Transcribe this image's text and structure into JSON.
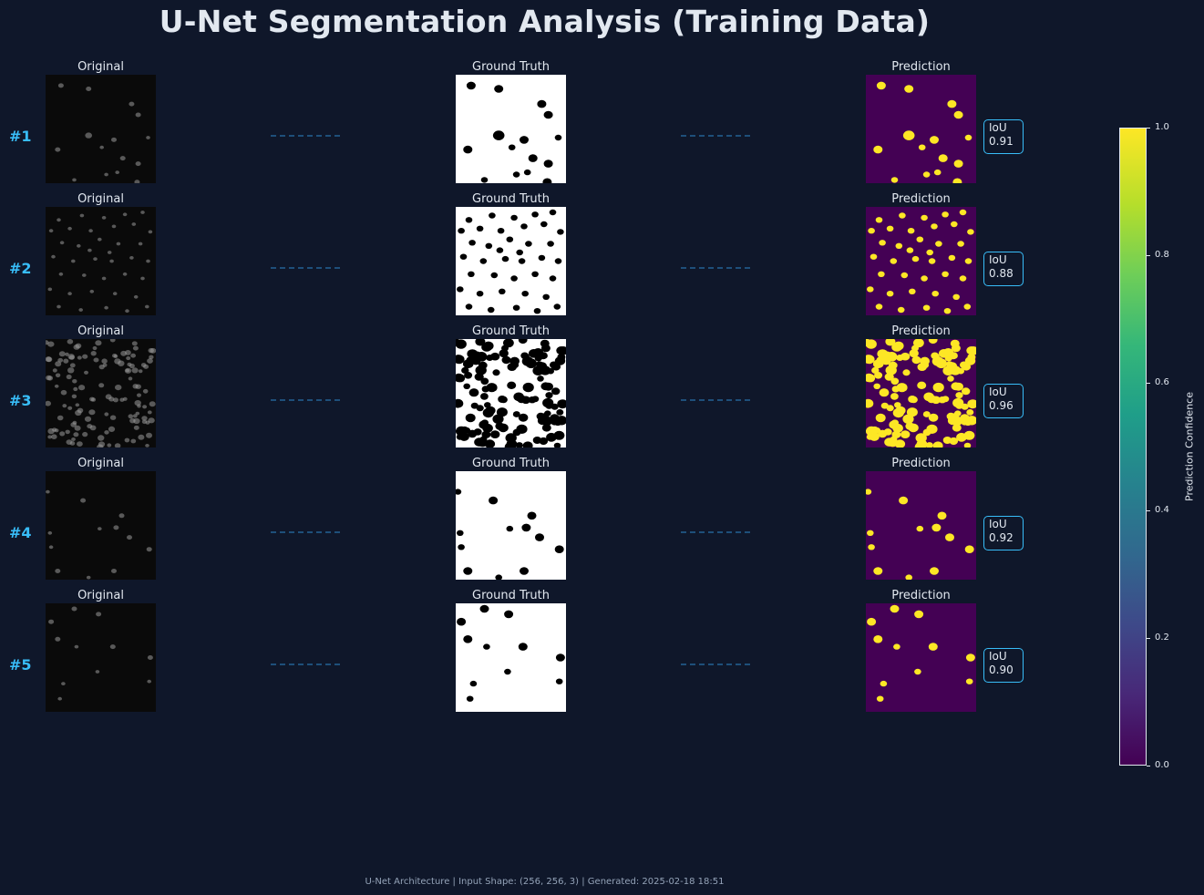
{
  "title": "U-Net Segmentation Analysis (Training Data)",
  "footer": "U-Net Architecture | Input Shape: (256, 256, 3) | Generated: 2025-02-18 18:51",
  "colors": {
    "background": "#0f172a",
    "text": "#e2e8f0",
    "accent": "#38bdf8",
    "connector": "#1e4f7a",
    "viridis_low": "#440154",
    "viridis_high": "#fde725"
  },
  "chart_data": {
    "type": "image_grid",
    "columns": [
      "Original",
      "Ground Truth",
      "Prediction"
    ],
    "rows": [
      {
        "label": "#1",
        "iou_label": "IoU",
        "iou": "0.91",
        "nuclei": [
          [
            0.14,
            0.1,
            4
          ],
          [
            0.39,
            0.13,
            4
          ],
          [
            0.78,
            0.27,
            4
          ],
          [
            0.84,
            0.37,
            4
          ],
          [
            0.39,
            0.56,
            5
          ],
          [
            0.62,
            0.6,
            4
          ],
          [
            0.11,
            0.69,
            4
          ],
          [
            0.51,
            0.67,
            3
          ],
          [
            0.7,
            0.77,
            4
          ],
          [
            0.84,
            0.82,
            4
          ],
          [
            0.83,
            0.99,
            4
          ],
          [
            0.55,
            0.92,
            3
          ],
          [
            0.26,
            0.97,
            3
          ],
          [
            0.65,
            0.9,
            3
          ],
          [
            0.93,
            0.58,
            3
          ]
        ]
      },
      {
        "label": "#2",
        "iou_label": "IoU",
        "iou": "0.88",
        "nuclei": [
          [
            0.12,
            0.12,
            3
          ],
          [
            0.33,
            0.08,
            3
          ],
          [
            0.53,
            0.1,
            3
          ],
          [
            0.72,
            0.07,
            3
          ],
          [
            0.88,
            0.05,
            3
          ],
          [
            0.05,
            0.22,
            3
          ],
          [
            0.22,
            0.2,
            3
          ],
          [
            0.41,
            0.22,
            3
          ],
          [
            0.62,
            0.18,
            3
          ],
          [
            0.8,
            0.16,
            3
          ],
          [
            0.95,
            0.23,
            3
          ],
          [
            0.15,
            0.33,
            3
          ],
          [
            0.3,
            0.36,
            3
          ],
          [
            0.49,
            0.3,
            3
          ],
          [
            0.66,
            0.34,
            3
          ],
          [
            0.86,
            0.34,
            3
          ],
          [
            0.07,
            0.46,
            3
          ],
          [
            0.25,
            0.5,
            3
          ],
          [
            0.45,
            0.48,
            3
          ],
          [
            0.6,
            0.5,
            3
          ],
          [
            0.78,
            0.47,
            3
          ],
          [
            0.93,
            0.5,
            3
          ],
          [
            0.14,
            0.62,
            3
          ],
          [
            0.35,
            0.63,
            3
          ],
          [
            0.53,
            0.66,
            3
          ],
          [
            0.72,
            0.62,
            3
          ],
          [
            0.88,
            0.66,
            3
          ],
          [
            0.04,
            0.76,
            3
          ],
          [
            0.22,
            0.8,
            3
          ],
          [
            0.42,
            0.78,
            3
          ],
          [
            0.63,
            0.8,
            3
          ],
          [
            0.82,
            0.83,
            3
          ],
          [
            0.12,
            0.92,
            3
          ],
          [
            0.32,
            0.95,
            3
          ],
          [
            0.55,
            0.93,
            3
          ],
          [
            0.74,
            0.96,
            3
          ],
          [
            0.92,
            0.92,
            3
          ],
          [
            0.58,
            0.42,
            3
          ],
          [
            0.4,
            0.4,
            3
          ]
        ]
      },
      {
        "label": "#3",
        "iou_label": "IoU",
        "iou": "0.96",
        "dense": true
      },
      {
        "label": "#4",
        "iou_label": "IoU",
        "iou": "0.92",
        "nuclei": [
          [
            0.02,
            0.19,
            3
          ],
          [
            0.34,
            0.27,
            4
          ],
          [
            0.69,
            0.41,
            4
          ],
          [
            0.49,
            0.53,
            3
          ],
          [
            0.64,
            0.52,
            4
          ],
          [
            0.04,
            0.57,
            3
          ],
          [
            0.05,
            0.7,
            3
          ],
          [
            0.76,
            0.61,
            4
          ],
          [
            0.94,
            0.72,
            4
          ],
          [
            0.62,
            0.92,
            4
          ],
          [
            0.11,
            0.92,
            4
          ],
          [
            0.39,
            0.98,
            3
          ]
        ]
      },
      {
        "label": "#5",
        "iou_label": "IoU",
        "iou": "0.90",
        "nuclei": [
          [
            0.26,
            0.05,
            4
          ],
          [
            0.48,
            0.1,
            4
          ],
          [
            0.05,
            0.17,
            4
          ],
          [
            0.11,
            0.33,
            4
          ],
          [
            0.28,
            0.4,
            3
          ],
          [
            0.61,
            0.4,
            4
          ],
          [
            0.95,
            0.5,
            4
          ],
          [
            0.47,
            0.63,
            3
          ],
          [
            0.16,
            0.74,
            3
          ],
          [
            0.94,
            0.72,
            3
          ],
          [
            0.13,
            0.88,
            3
          ]
        ]
      }
    ],
    "colorbar": {
      "label": "Prediction Confidence",
      "ticks": [
        "0.0",
        "0.2",
        "0.4",
        "0.6",
        "0.8",
        "1.0"
      ],
      "range": [
        0,
        1
      ],
      "colormap": "viridis"
    }
  }
}
